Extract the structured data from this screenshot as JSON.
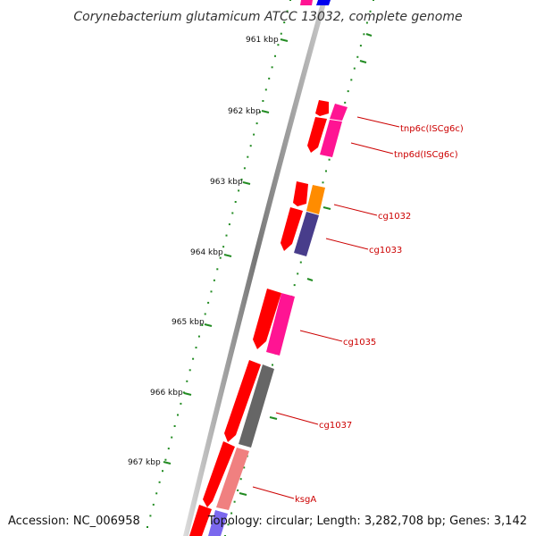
{
  "title": "Corynebacterium glutamicum ATCC 13032, complete genome",
  "accession": "Accession: NC_006958",
  "topology": "Topology: circular; Length: 3,282,708 bp; Genes: 3,142",
  "colors": {
    "backbone": "#888888",
    "cds": "#ff0000",
    "tnp": "#ff1493",
    "cg1032": "#ff8c00",
    "cg1033": "#483d8b",
    "cg1037": "#666666",
    "ksgA": "#f08080",
    "ticks": "#228b22",
    "label": "#cc0000",
    "blue_top": "#0000ee",
    "violet_bottom": "#7b68ee"
  },
  "ruler": {
    "unit": "kbp",
    "ticks": [
      "961 kbp",
      "962 kbp",
      "963 kbp",
      "964 kbp",
      "965 kbp",
      "966 kbp",
      "967 kbp"
    ]
  },
  "genes": [
    {
      "name": "tnp6c(ISCg6c)"
    },
    {
      "name": "tnp6d(ISCg6c)"
    },
    {
      "name": "cg1032"
    },
    {
      "name": "cg1033"
    },
    {
      "name": "cg1035"
    },
    {
      "name": "cg1037"
    },
    {
      "name": "ksgA"
    }
  ]
}
